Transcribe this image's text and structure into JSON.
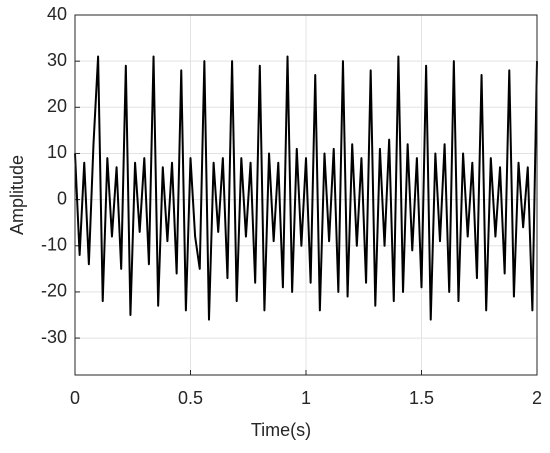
{
  "chart_data": {
    "type": "line",
    "x_label": "Time(s)",
    "y_label": "Amplitude",
    "x": [
      0,
      0.02,
      0.04,
      0.06,
      0.08,
      0.1,
      0.12,
      0.14,
      0.16,
      0.18,
      0.2,
      0.22,
      0.24,
      0.26,
      0.28,
      0.3,
      0.32,
      0.34,
      0.36,
      0.38,
      0.4,
      0.42,
      0.44,
      0.46,
      0.48,
      0.5,
      0.52,
      0.54,
      0.56,
      0.58,
      0.6,
      0.62,
      0.64,
      0.66,
      0.68,
      0.7,
      0.72,
      0.74,
      0.76,
      0.78,
      0.8,
      0.82,
      0.84,
      0.86,
      0.88,
      0.9,
      0.92,
      0.94,
      0.96,
      0.98,
      1,
      1.02,
      1.04,
      1.06,
      1.08,
      1.1,
      1.12,
      1.14,
      1.16,
      1.18,
      1.2,
      1.22,
      1.24,
      1.26,
      1.28,
      1.3,
      1.32,
      1.34,
      1.36,
      1.38,
      1.4,
      1.42,
      1.44,
      1.46,
      1.48,
      1.5,
      1.52,
      1.54,
      1.56,
      1.58,
      1.6,
      1.62,
      1.64,
      1.66,
      1.68,
      1.7,
      1.72,
      1.74,
      1.76,
      1.78,
      1.8,
      1.82,
      1.84,
      1.86,
      1.88,
      1.9,
      1.92,
      1.94,
      1.96,
      1.98,
      2
    ],
    "series": [
      {
        "color": "#000000",
        "values": [
          10,
          -12,
          8,
          -14,
          12,
          31,
          -22,
          9,
          -8,
          7,
          -15,
          29,
          -25,
          8,
          -7,
          9,
          -14,
          31,
          -23,
          7,
          -9,
          8,
          -16,
          28,
          -24,
          9,
          -8,
          -15,
          30,
          -26,
          8,
          -7,
          9,
          -17,
          30,
          -22,
          9,
          -8,
          8,
          -18,
          29,
          -24,
          10,
          -9,
          8,
          -19,
          31,
          -20,
          11,
          -10,
          9,
          -18,
          27,
          -24,
          10,
          -9,
          11,
          -20,
          30,
          -21,
          12,
          -10,
          9,
          -18,
          28,
          -23,
          11,
          -10,
          13,
          -22,
          31,
          -20,
          12,
          -11,
          9,
          -19,
          29,
          -26,
          10,
          -9,
          12,
          -20,
          30,
          -22,
          10,
          -8,
          8,
          -17,
          27,
          -24,
          9,
          -8,
          7,
          -16,
          28,
          -21,
          8,
          -6,
          7,
          -24,
          30
        ]
      }
    ],
    "xlim": [
      0,
      2
    ],
    "ylim": [
      -38,
      40
    ],
    "xticks": [
      0,
      0.5,
      1,
      1.5,
      2
    ],
    "yticks": [
      -30,
      -20,
      -10,
      0,
      10,
      20,
      30,
      40
    ],
    "grid": true
  }
}
